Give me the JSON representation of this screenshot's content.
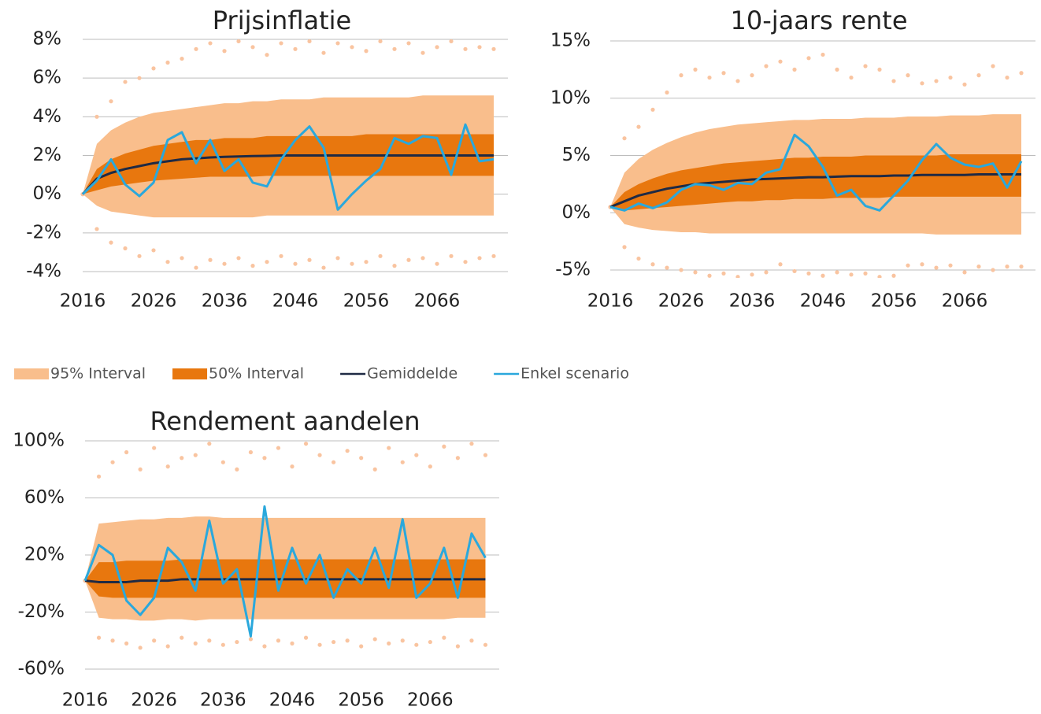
{
  "chart_data": [
    {
      "type": "line",
      "title": "Prijsinflatie",
      "x": [
        2016,
        2018,
        2020,
        2022,
        2024,
        2026,
        2028,
        2030,
        2032,
        2034,
        2036,
        2038,
        2040,
        2042,
        2044,
        2046,
        2048,
        2050,
        2052,
        2054,
        2056,
        2058,
        2060,
        2062,
        2064,
        2066,
        2068,
        2070,
        2072,
        2074
      ],
      "xlim": [
        2016,
        2076
      ],
      "xticks": [
        2016,
        2026,
        2036,
        2046,
        2056,
        2066
      ],
      "ylim": [
        -4,
        8
      ],
      "yticks": [
        {
          "value": -4,
          "label": "-4%"
        },
        {
          "value": -2,
          "label": "-2%"
        },
        {
          "value": 0,
          "label": "0%"
        },
        {
          "value": 2,
          "label": "2%"
        },
        {
          "value": 4,
          "label": "4%"
        },
        {
          "value": 6,
          "label": "6%"
        },
        {
          "value": 8,
          "label": "8%"
        }
      ],
      "grid": true,
      "series": [
        {
          "color": "#f9c4a0",
          "style": "dotted",
          "values": [
            0,
            4.0,
            4.8,
            5.8,
            6.0,
            6.5,
            6.8,
            7.0,
            7.5,
            7.8,
            7.4,
            7.9,
            7.6,
            7.2,
            7.8,
            7.5,
            7.9,
            7.3,
            7.8,
            7.6,
            7.4,
            7.9,
            7.5,
            7.8,
            7.3,
            7.6,
            7.9,
            7.5,
            7.6,
            7.5
          ]
        },
        {
          "color": "#f9c4a0",
          "style": "dotted",
          "values": [
            0,
            -1.8,
            -2.5,
            -2.8,
            -3.2,
            -2.9,
            -3.5,
            -3.3,
            -3.8,
            -3.4,
            -3.6,
            -3.3,
            -3.7,
            -3.5,
            -3.2,
            -3.6,
            -3.4,
            -3.8,
            -3.3,
            -3.6,
            -3.5,
            -3.2,
            -3.7,
            -3.4,
            -3.3,
            -3.6,
            -3.2,
            -3.5,
            -3.3,
            -3.2
          ]
        },
        {
          "name": "95% Interval",
          "color": "#f9be8c",
          "low": [
            0,
            -0.6,
            -0.9,
            -1.0,
            -1.1,
            -1.2,
            -1.2,
            -1.2,
            -1.2,
            -1.2,
            -1.2,
            -1.2,
            -1.2,
            -1.1,
            -1.1,
            -1.1,
            -1.1,
            -1.1,
            -1.1,
            -1.1,
            -1.1,
            -1.1,
            -1.1,
            -1.1,
            -1.1,
            -1.1,
            -1.1,
            -1.1,
            -1.1,
            -1.1
          ],
          "high": [
            0,
            2.6,
            3.3,
            3.7,
            4.0,
            4.2,
            4.3,
            4.4,
            4.5,
            4.6,
            4.7,
            4.7,
            4.8,
            4.8,
            4.9,
            4.9,
            4.9,
            5.0,
            5.0,
            5.0,
            5.0,
            5.0,
            5.0,
            5.0,
            5.1,
            5.1,
            5.1,
            5.1,
            5.1,
            5.1
          ]
        },
        {
          "name": "50% Interval",
          "color": "#e8770e",
          "low": [
            0,
            0.2,
            0.4,
            0.5,
            0.6,
            0.7,
            0.75,
            0.8,
            0.85,
            0.9,
            0.9,
            0.9,
            0.9,
            0.95,
            0.95,
            0.95,
            0.95,
            0.95,
            0.95,
            0.95,
            0.95,
            0.95,
            0.95,
            0.95,
            0.95,
            0.95,
            0.95,
            0.95,
            0.95,
            0.95
          ],
          "high": [
            0,
            1.3,
            1.8,
            2.1,
            2.3,
            2.5,
            2.6,
            2.7,
            2.8,
            2.8,
            2.9,
            2.9,
            2.9,
            3.0,
            3.0,
            3.0,
            3.0,
            3.0,
            3.0,
            3.0,
            3.1,
            3.1,
            3.1,
            3.1,
            3.1,
            3.1,
            3.1,
            3.1,
            3.1,
            3.1
          ]
        },
        {
          "name": "Gemiddelde",
          "color": "#1f2a44",
          "values": [
            0,
            0.8,
            1.1,
            1.3,
            1.45,
            1.6,
            1.7,
            1.8,
            1.85,
            1.9,
            1.93,
            1.95,
            1.97,
            1.98,
            2,
            2,
            2,
            2,
            2,
            2,
            2,
            2,
            2,
            2,
            2,
            2,
            2,
            2,
            2,
            2
          ]
        },
        {
          "name": "Enkel scenario",
          "color": "#2aa8dc",
          "values": [
            0,
            0.7,
            1.8,
            0.5,
            -0.1,
            0.6,
            2.8,
            3.2,
            1.6,
            2.8,
            1.2,
            1.8,
            0.6,
            0.4,
            1.8,
            2.8,
            3.5,
            2.4,
            -0.8,
            0,
            0.7,
            1.3,
            2.9,
            2.6,
            3.0,
            2.9,
            1.0,
            3.6,
            1.7,
            1.8
          ]
        }
      ]
    },
    {
      "type": "line",
      "title": "10-jaars rente",
      "x": [
        2016,
        2018,
        2020,
        2022,
        2024,
        2026,
        2028,
        2030,
        2032,
        2034,
        2036,
        2038,
        2040,
        2042,
        2044,
        2046,
        2048,
        2050,
        2052,
        2054,
        2056,
        2058,
        2060,
        2062,
        2064,
        2066,
        2068,
        2070,
        2072,
        2074
      ],
      "xlim": [
        2016,
        2076
      ],
      "xticks": [
        2016,
        2026,
        2036,
        2046,
        2056,
        2066
      ],
      "ylim": [
        -5,
        15
      ],
      "yticks": [
        {
          "value": -5,
          "label": "-5%"
        },
        {
          "value": 0,
          "label": "0%"
        },
        {
          "value": 5,
          "label": "5%"
        },
        {
          "value": 10,
          "label": "10%"
        },
        {
          "value": 15,
          "label": "15%"
        }
      ],
      "grid": true,
      "series": [
        {
          "color": "#f9c4a0",
          "style": "dotted",
          "values": [
            0.5,
            6.5,
            7.5,
            9.0,
            10.5,
            12.0,
            12.5,
            11.8,
            12.2,
            11.5,
            12.0,
            12.8,
            13.2,
            12.5,
            13.5,
            13.8,
            12.5,
            11.8,
            12.8,
            12.5,
            11.5,
            12.0,
            11.3,
            11.5,
            11.8,
            11.2,
            12.0,
            12.8,
            11.8,
            12.2
          ]
        },
        {
          "color": "#f9c4a0",
          "style": "dotted",
          "values": [
            0.5,
            -3.0,
            -4.0,
            -4.5,
            -4.8,
            -5.0,
            -5.2,
            -5.5,
            -5.3,
            -5.6,
            -5.4,
            -5.2,
            -4.5,
            -5.1,
            -5.3,
            -5.5,
            -5.2,
            -5.4,
            -5.3,
            -5.6,
            -5.5,
            -4.6,
            -4.5,
            -4.8,
            -4.6,
            -5.2,
            -4.7,
            -5.0,
            -4.7,
            -4.7
          ]
        },
        {
          "color": "#f9be8c",
          "low": [
            0.5,
            -1.0,
            -1.3,
            -1.5,
            -1.6,
            -1.7,
            -1.7,
            -1.8,
            -1.8,
            -1.8,
            -1.8,
            -1.8,
            -1.8,
            -1.8,
            -1.8,
            -1.8,
            -1.8,
            -1.8,
            -1.8,
            -1.8,
            -1.8,
            -1.8,
            -1.8,
            -1.9,
            -1.9,
            -1.9,
            -1.9,
            -1.9,
            -1.9,
            -1.9
          ],
          "high": [
            0.5,
            3.5,
            4.7,
            5.5,
            6.1,
            6.6,
            7.0,
            7.3,
            7.5,
            7.7,
            7.8,
            7.9,
            8.0,
            8.1,
            8.1,
            8.2,
            8.2,
            8.2,
            8.3,
            8.3,
            8.3,
            8.4,
            8.4,
            8.4,
            8.5,
            8.5,
            8.5,
            8.6,
            8.6,
            8.6
          ]
        },
        {
          "color": "#e8770e",
          "low": [
            0.5,
            0.2,
            0.3,
            0.4,
            0.5,
            0.6,
            0.7,
            0.8,
            0.9,
            1.0,
            1.0,
            1.1,
            1.1,
            1.2,
            1.2,
            1.2,
            1.3,
            1.3,
            1.3,
            1.3,
            1.4,
            1.4,
            1.4,
            1.4,
            1.4,
            1.4,
            1.4,
            1.4,
            1.4,
            1.4
          ],
          "high": [
            0.5,
            1.8,
            2.5,
            3.0,
            3.4,
            3.7,
            3.9,
            4.1,
            4.3,
            4.4,
            4.5,
            4.6,
            4.7,
            4.8,
            4.8,
            4.9,
            4.9,
            4.9,
            5.0,
            5.0,
            5.0,
            5.0,
            5.0,
            5.0,
            5.1,
            5.1,
            5.1,
            5.1,
            5.1,
            5.1
          ]
        },
        {
          "color": "#1f2a44",
          "values": [
            0.5,
            1.0,
            1.5,
            1.8,
            2.1,
            2.3,
            2.5,
            2.6,
            2.7,
            2.8,
            2.9,
            2.95,
            3.0,
            3.05,
            3.1,
            3.1,
            3.15,
            3.2,
            3.2,
            3.2,
            3.25,
            3.25,
            3.3,
            3.3,
            3.3,
            3.3,
            3.35,
            3.35,
            3.35,
            3.35
          ]
        },
        {
          "color": "#2aa8dc",
          "values": [
            0.5,
            0.2,
            0.8,
            0.4,
            0.9,
            2.0,
            2.5,
            2.4,
            2.0,
            2.6,
            2.5,
            3.5,
            3.8,
            6.8,
            5.8,
            4.0,
            1.5,
            2.0,
            0.6,
            0.2,
            1.5,
            2.8,
            4.6,
            6.0,
            4.8,
            4.2,
            4.0,
            4.3,
            2.2,
            4.5
          ]
        }
      ]
    },
    {
      "type": "line",
      "title": "Rendement aandelen",
      "x": [
        2016,
        2018,
        2020,
        2022,
        2024,
        2026,
        2028,
        2030,
        2032,
        2034,
        2036,
        2038,
        2040,
        2042,
        2044,
        2046,
        2048,
        2050,
        2052,
        2054,
        2056,
        2058,
        2060,
        2062,
        2064,
        2066,
        2068,
        2070,
        2072,
        2074
      ],
      "xlim": [
        2016,
        2076
      ],
      "xticks": [
        2016,
        2026,
        2036,
        2046,
        2056,
        2066
      ],
      "ylim": [
        -60,
        100
      ],
      "yticks": [
        {
          "value": -60,
          "label": "-60%"
        },
        {
          "value": -20,
          "label": "-20%"
        },
        {
          "value": 20,
          "label": "20%"
        },
        {
          "value": 60,
          "label": "60%"
        },
        {
          "value": 100,
          "label": "100%"
        }
      ],
      "grid": true,
      "series": [
        {
          "color": "#f9c4a0",
          "style": "dotted",
          "values": [
            2,
            75,
            85,
            92,
            80,
            95,
            82,
            88,
            90,
            98,
            85,
            80,
            92,
            88,
            95,
            82,
            98,
            90,
            85,
            93,
            88,
            80,
            95,
            85,
            90,
            82,
            96,
            88,
            98,
            90
          ]
        },
        {
          "color": "#f9c4a0",
          "style": "dotted",
          "values": [
            2,
            -38,
            -40,
            -42,
            -45,
            -40,
            -44,
            -38,
            -42,
            -40,
            -43,
            -41,
            -39,
            -44,
            -40,
            -42,
            -38,
            -43,
            -41,
            -40,
            -44,
            -39,
            -42,
            -40,
            -43,
            -41,
            -38,
            -44,
            -40,
            -43
          ]
        },
        {
          "color": "#f9be8c",
          "low": [
            2,
            -24,
            -25,
            -25,
            -26,
            -26,
            -25,
            -25,
            -26,
            -25,
            -25,
            -25,
            -25,
            -25,
            -25,
            -25,
            -25,
            -25,
            -25,
            -25,
            -25,
            -25,
            -25,
            -25,
            -25,
            -25,
            -25,
            -24,
            -24,
            -24
          ],
          "high": [
            2,
            42,
            43,
            44,
            45,
            45,
            46,
            46,
            47,
            47,
            46,
            46,
            46,
            46,
            46,
            46,
            46,
            46,
            46,
            46,
            46,
            46,
            46,
            46,
            46,
            46,
            46,
            46,
            46,
            46
          ]
        },
        {
          "color": "#e8770e",
          "low": [
            2,
            -9,
            -10,
            -10,
            -10,
            -10,
            -10,
            -10,
            -10,
            -10,
            -10,
            -10,
            -10,
            -10,
            -10,
            -10,
            -10,
            -10,
            -10,
            -10,
            -10,
            -10,
            -10,
            -10,
            -10,
            -10,
            -10,
            -10,
            -10,
            -10
          ],
          "high": [
            2,
            15,
            15,
            16,
            16,
            16,
            16,
            17,
            17,
            17,
            17,
            17,
            17,
            17,
            17,
            17,
            17,
            17,
            17,
            17,
            17,
            17,
            17,
            17,
            17,
            17,
            17,
            17,
            17,
            17
          ]
        },
        {
          "color": "#1f2a44",
          "values": [
            2,
            1,
            1,
            1,
            2,
            2,
            2,
            3,
            3,
            3,
            3,
            3,
            3,
            3,
            3,
            3,
            3,
            3,
            3,
            3,
            3,
            3,
            3,
            3,
            3,
            3,
            3,
            3,
            3,
            3
          ]
        },
        {
          "color": "#2aa8dc",
          "values": [
            2,
            27,
            20,
            -12,
            -22,
            -10,
            25,
            15,
            -5,
            44,
            0,
            10,
            -37,
            54,
            -5,
            25,
            0,
            20,
            -10,
            10,
            0,
            25,
            -3,
            45,
            -10,
            0,
            25,
            -10,
            35,
            18
          ]
        }
      ]
    }
  ]
}
